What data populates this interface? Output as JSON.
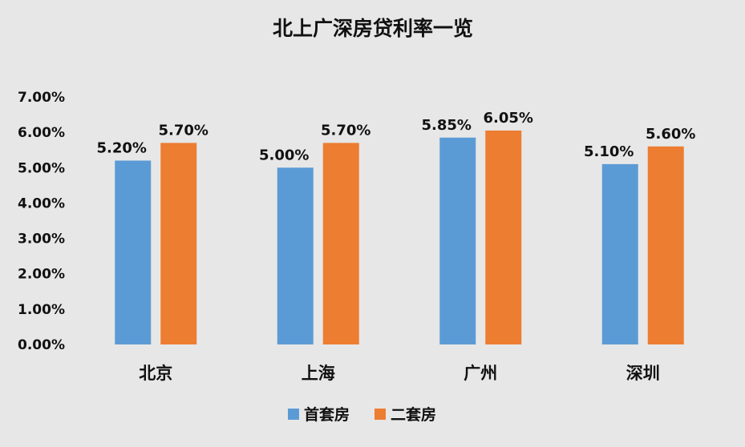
{
  "chart_data": {
    "type": "bar",
    "title": "北上广深房贷利率一览",
    "categories": [
      "北京",
      "上海",
      "广州",
      "深圳"
    ],
    "series": [
      {
        "name": "首套房",
        "values": [
          5.2,
          5.0,
          5.85,
          5.1
        ],
        "labels": [
          "5.20%",
          "5.00%",
          "5.85%",
          "5.10%"
        ],
        "color": "#5b9bd5"
      },
      {
        "name": "二套房",
        "values": [
          5.7,
          5.7,
          6.05,
          5.6
        ],
        "labels": [
          "5.70%",
          "5.70%",
          "6.05%",
          "5.60%"
        ],
        "color": "#ed7d31"
      }
    ],
    "yticks": [
      "0.00%",
      "1.00%",
      "2.00%",
      "3.00%",
      "4.00%",
      "5.00%",
      "6.00%",
      "7.00%"
    ],
    "ylim": [
      0,
      7
    ],
    "grid": false,
    "legend_position": "bottom"
  }
}
